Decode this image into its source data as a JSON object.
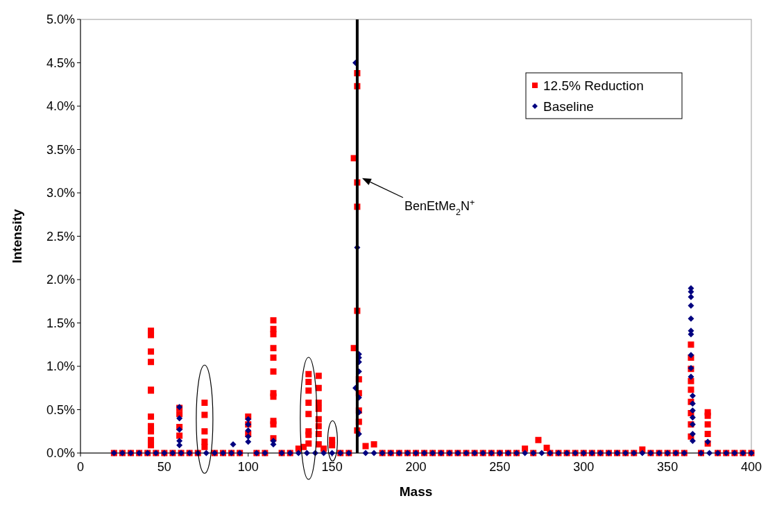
{
  "chart_data": {
    "type": "scatter",
    "xlabel": "Mass",
    "ylabel": "Intensity",
    "xlim": [
      0,
      400
    ],
    "xticks": [
      0,
      50,
      100,
      150,
      200,
      250,
      300,
      350,
      400
    ],
    "ylim": [
      0,
      5
    ],
    "yticks": [
      {
        "value": 0,
        "label": "0.0%"
      },
      {
        "value": 0.5,
        "label": "0.5%"
      },
      {
        "value": 1,
        "label": "1.0%"
      },
      {
        "value": 1.5,
        "label": "1.5%"
      },
      {
        "value": 2,
        "label": "2.0%"
      },
      {
        "value": 2.5,
        "label": "2.5%"
      },
      {
        "value": 3,
        "label": "3.0%"
      },
      {
        "value": 3.5,
        "label": "3.5%"
      },
      {
        "value": 4,
        "label": "4.0%"
      },
      {
        "value": 4.5,
        "label": "4.5%"
      },
      {
        "value": 5,
        "label": "5.0%"
      }
    ],
    "grid": false,
    "legend": "top right",
    "series": [
      {
        "name": "12.5% Reduction",
        "color": "#ff0000",
        "marker": "square",
        "x": [
          20,
          25,
          30,
          35,
          40,
          42,
          42,
          42,
          42,
          42,
          42,
          42,
          42,
          42,
          42,
          42,
          45,
          50,
          55,
          59,
          59,
          59,
          59,
          60,
          65,
          70,
          74,
          74,
          74,
          74,
          74,
          80,
          85,
          90,
          95,
          100,
          100,
          100,
          105,
          110,
          115,
          115,
          115,
          115,
          115,
          115,
          115,
          115,
          115,
          115,
          115,
          120,
          125,
          130,
          133,
          136,
          136,
          136,
          136,
          136,
          136,
          136,
          136,
          142,
          142,
          142,
          142,
          142,
          142,
          142,
          142,
          145,
          150,
          150,
          155,
          160,
          163,
          163,
          165,
          165,
          165,
          165,
          165,
          165,
          166,
          166,
          166,
          166,
          170,
          175,
          180,
          185,
          190,
          195,
          200,
          205,
          210,
          215,
          220,
          225,
          230,
          235,
          240,
          245,
          250,
          255,
          260,
          265,
          270,
          273,
          278,
          280,
          285,
          290,
          295,
          300,
          305,
          310,
          315,
          320,
          325,
          330,
          335,
          340,
          345,
          350,
          355,
          360,
          364,
          364,
          364,
          364,
          364,
          364,
          364,
          364,
          364,
          370,
          374,
          374,
          374,
          374,
          374,
          380,
          385,
          390,
          395,
          400
        ],
        "values": [
          0,
          0,
          0,
          0,
          0,
          1.41,
          1.36,
          1.17,
          1.05,
          0.73,
          0.72,
          0.42,
          0.31,
          0.25,
          0.15,
          0.09,
          0,
          0,
          0,
          0.52,
          0.45,
          0.3,
          0.2,
          0,
          0,
          0,
          0.58,
          0.44,
          0.25,
          0.13,
          0.07,
          0,
          0,
          0,
          0,
          0.42,
          0.33,
          0.22,
          0,
          0,
          1.53,
          1.43,
          1.37,
          1.21,
          1.1,
          0.94,
          0.69,
          0.65,
          0.37,
          0.33,
          0.17,
          0,
          0,
          0.05,
          0.07,
          0.91,
          0.82,
          0.72,
          0.58,
          0.45,
          0.25,
          0.21,
          0.11,
          0.89,
          0.75,
          0.58,
          0.51,
          0.39,
          0.31,
          0.22,
          0.1,
          0.05,
          0.15,
          0.09,
          0,
          0,
          3.4,
          1.21,
          4.38,
          4.23,
          3.12,
          2.84,
          1.64,
          0.26,
          0.85,
          0.69,
          0.49,
          0.36,
          0.08,
          0.1,
          0,
          0,
          0,
          0,
          0,
          0,
          0,
          0,
          0,
          0,
          0,
          0,
          0,
          0,
          0,
          0,
          0,
          0.05,
          0,
          0.15,
          0.06,
          0,
          0,
          0,
          0,
          0,
          0,
          0,
          0,
          0,
          0,
          0,
          0.04,
          0,
          0,
          0,
          0,
          0,
          1.25,
          1.1,
          0.97,
          0.83,
          0.73,
          0.59,
          0.46,
          0.33,
          0.19,
          0,
          0.47,
          0.43,
          0.33,
          0.22,
          0.11,
          0,
          0,
          0,
          0,
          0
        ]
      },
      {
        "name": "Baseline",
        "color": "#000080",
        "marker": "diamond",
        "x": [
          20,
          25,
          30,
          35,
          40,
          45,
          50,
          55,
          59,
          59,
          59,
          59,
          59,
          60,
          65,
          70,
          75,
          80,
          85,
          90,
          91,
          95,
          100,
          100,
          100,
          100,
          100,
          105,
          110,
          115,
          115,
          120,
          125,
          130,
          135,
          140,
          145,
          150,
          155,
          160,
          164,
          164,
          165,
          166,
          166,
          166,
          166,
          166,
          166,
          166,
          170,
          175,
          180,
          185,
          190,
          195,
          200,
          205,
          210,
          215,
          220,
          225,
          230,
          235,
          240,
          245,
          250,
          255,
          260,
          265,
          270,
          275,
          280,
          285,
          290,
          295,
          300,
          305,
          310,
          315,
          320,
          325,
          330,
          335,
          340,
          345,
          350,
          355,
          360,
          364,
          364,
          364,
          364,
          364,
          364,
          364,
          364,
          364,
          364,
          365,
          365,
          365,
          365,
          365,
          365,
          365,
          370,
          374,
          375,
          380,
          385,
          390,
          395,
          400
        ],
        "values": [
          0,
          0,
          0,
          0,
          0,
          0,
          0,
          0,
          0.53,
          0.4,
          0.27,
          0.14,
          0.09,
          0,
          0,
          0,
          0,
          0,
          0,
          0,
          0.1,
          0,
          0.39,
          0.33,
          0.26,
          0.19,
          0.13,
          0,
          0,
          0.14,
          0.1,
          0,
          0,
          0,
          0,
          0,
          0,
          0,
          0,
          0,
          4.5,
          0.75,
          2.37,
          1.14,
          1.1,
          1.05,
          0.94,
          0.64,
          0.47,
          0.22,
          0,
          0,
          0,
          0,
          0,
          0,
          0,
          0,
          0,
          0,
          0,
          0,
          0,
          0,
          0,
          0,
          0,
          0,
          0,
          0,
          0,
          0,
          0,
          0,
          0,
          0,
          0,
          0,
          0,
          0,
          0,
          0,
          0,
          0,
          0,
          0,
          0,
          0,
          0,
          1.9,
          1.86,
          1.8,
          1.7,
          1.55,
          1.41,
          1.37,
          1.13,
          0.98,
          0.88,
          0.66,
          0.57,
          0.49,
          0.41,
          0.33,
          0.22,
          0.14,
          0,
          0.13,
          0,
          0,
          0,
          0,
          0,
          0
        ]
      }
    ],
    "ref_lines": [
      {
        "axis": "x",
        "value": 165,
        "color": "#000000"
      }
    ],
    "annotations": [
      "BenEtMe$_{2}$N$^{+}$"
    ]
  }
}
